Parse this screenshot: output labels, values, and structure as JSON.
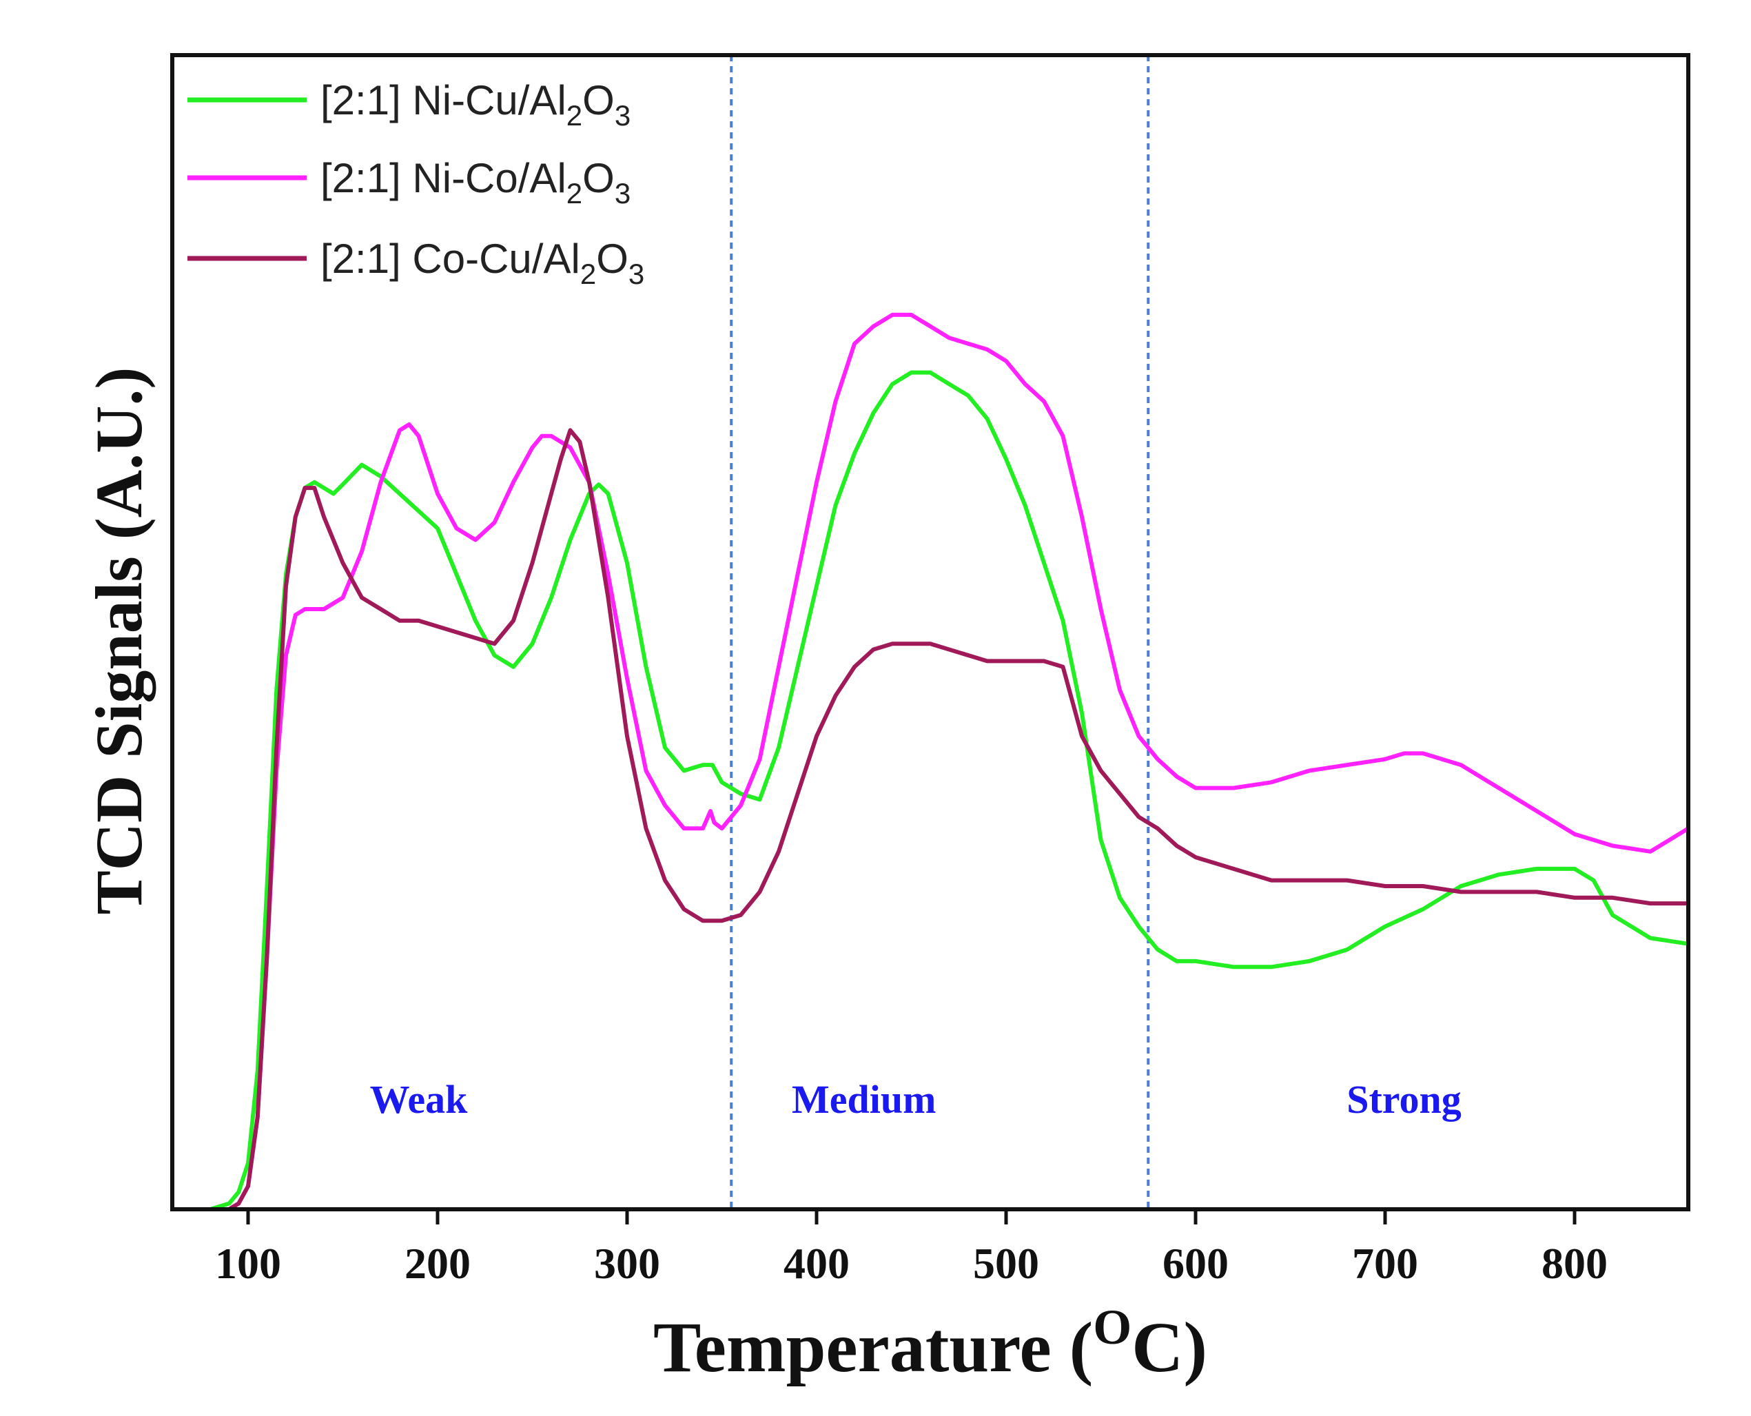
{
  "chart_data": {
    "type": "line",
    "title": "",
    "xlabel": "Temperature",
    "xlabel_unit_sup": "O",
    "xlabel_unit": "C",
    "ylabel": "TCD Signals (A.U.)",
    "xlim": [
      60,
      860
    ],
    "ylim": [
      0,
      100
    ],
    "x_ticks": [
      100,
      200,
      300,
      400,
      500,
      600,
      700,
      800
    ],
    "y_ticks": [],
    "grid": false,
    "legend_position": "top-left",
    "dividers": [
      {
        "x": 355,
        "color": "#4a7fd4"
      },
      {
        "x": 575,
        "color": "#4a7fd4"
      }
    ],
    "regions": [
      {
        "label": "Weak",
        "x": 190,
        "color": "#1a1aee"
      },
      {
        "label": "Medium",
        "x": 425,
        "color": "#1a1aee"
      },
      {
        "label": "Strong",
        "x": 710,
        "color": "#1a1aee"
      }
    ],
    "series": [
      {
        "name": "[2:1] Ni-Cu/Al2O3",
        "legend": {
          "prefix": "[2:1] Ni-Cu/Al",
          "sub1": "2",
          "mid": "O",
          "sub2": "3"
        },
        "color": "#22ee22",
        "x": [
          80,
          90,
          95,
          100,
          105,
          110,
          115,
          120,
          125,
          130,
          135,
          140,
          145,
          150,
          160,
          170,
          180,
          190,
          200,
          210,
          220,
          230,
          240,
          250,
          260,
          270,
          280,
          285,
          290,
          300,
          310,
          320,
          330,
          340,
          345,
          350,
          360,
          370,
          380,
          390,
          400,
          410,
          420,
          430,
          440,
          450,
          460,
          470,
          480,
          490,
          500,
          510,
          520,
          530,
          540,
          550,
          560,
          570,
          580,
          590,
          600,
          620,
          640,
          660,
          680,
          700,
          720,
          740,
          760,
          780,
          800,
          810,
          820,
          840,
          860
        ],
        "y": [
          0,
          0.5,
          1.5,
          4,
          12,
          28,
          45,
          55,
          60,
          62.5,
          63,
          62.5,
          62,
          62.8,
          64.5,
          63.5,
          62,
          60.5,
          59,
          55,
          51,
          48,
          47,
          49,
          53,
          58,
          62,
          62.8,
          62,
          56,
          47,
          40,
          38,
          38.5,
          38.5,
          37,
          36,
          35.5,
          40,
          47,
          54,
          61,
          65.5,
          69,
          71.5,
          72.5,
          72.5,
          71.5,
          70.5,
          68.5,
          65,
          61,
          56,
          51,
          43,
          32,
          27,
          24.5,
          22.5,
          21.5,
          21.5,
          21,
          21,
          21.5,
          22.5,
          24.5,
          26,
          28,
          29,
          29.5,
          29.5,
          28.5,
          25.5,
          23.5,
          23
        ]
      },
      {
        "name": "[2:1] Ni-Co/Al2O3",
        "legend": {
          "prefix": "[2:1] Ni-Co/Al",
          "sub1": "2",
          "mid": "O",
          "sub2": "3"
        },
        "color": "#ff22ff",
        "x": [
          80,
          90,
          95,
          100,
          105,
          110,
          115,
          120,
          125,
          130,
          135,
          140,
          150,
          160,
          170,
          180,
          185,
          190,
          200,
          210,
          220,
          230,
          240,
          250,
          255,
          260,
          270,
          280,
          290,
          300,
          310,
          320,
          330,
          340,
          344,
          346,
          350,
          360,
          370,
          380,
          390,
          400,
          410,
          420,
          430,
          440,
          450,
          460,
          470,
          480,
          490,
          500,
          510,
          520,
          530,
          540,
          550,
          560,
          570,
          580,
          590,
          600,
          620,
          640,
          660,
          680,
          700,
          710,
          720,
          740,
          760,
          780,
          800,
          820,
          840,
          860
        ],
        "y": [
          0,
          0,
          0.5,
          2,
          8,
          22,
          38,
          48,
          51.5,
          52,
          52,
          52,
          53,
          57,
          63,
          67.5,
          68,
          67,
          62,
          59,
          58,
          59.5,
          63,
          66,
          67,
          67,
          66,
          63,
          55,
          46,
          38,
          35,
          33,
          33,
          34.5,
          33.5,
          33,
          35,
          39,
          47,
          55,
          63,
          70,
          75,
          76.5,
          77.5,
          77.5,
          76.5,
          75.5,
          75,
          74.5,
          73.5,
          71.5,
          70,
          67,
          60,
          52,
          45,
          41,
          39,
          37.5,
          36.5,
          36.5,
          37,
          38,
          38.5,
          39,
          39.5,
          39.5,
          38.5,
          36.5,
          34.5,
          32.5,
          31.5,
          31,
          33
        ]
      },
      {
        "name": "[2:1] Co-Cu/Al2O3",
        "legend": {
          "prefix": "[2:1] Co-Cu/Al",
          "sub1": "2",
          "mid": "O",
          "sub2": "3"
        },
        "color": "#a01a5a",
        "x": [
          80,
          90,
          95,
          100,
          105,
          110,
          115,
          120,
          125,
          130,
          135,
          140,
          150,
          160,
          170,
          180,
          190,
          200,
          210,
          220,
          230,
          240,
          250,
          260,
          265,
          270,
          275,
          280,
          290,
          300,
          310,
          320,
          330,
          340,
          350,
          360,
          370,
          380,
          390,
          400,
          410,
          420,
          430,
          440,
          450,
          460,
          470,
          480,
          490,
          500,
          510,
          520,
          530,
          540,
          550,
          560,
          570,
          580,
          590,
          600,
          620,
          640,
          660,
          680,
          700,
          720,
          740,
          760,
          780,
          800,
          820,
          840,
          860
        ],
        "y": [
          0,
          0,
          0.5,
          2,
          8,
          22,
          40,
          54,
          60,
          62.5,
          62.5,
          60,
          56,
          53,
          52,
          51,
          51,
          50.5,
          50,
          49.5,
          49,
          51,
          56,
          62,
          65,
          67.5,
          66.5,
          63,
          53,
          41,
          33,
          28.5,
          26,
          25,
          25,
          25.5,
          27.5,
          31,
          36,
          41,
          44.5,
          47,
          48.5,
          49,
          49,
          49,
          48.5,
          48,
          47.5,
          47.5,
          47.5,
          47.5,
          47,
          41,
          38,
          36,
          34,
          33,
          31.5,
          30.5,
          29.5,
          28.5,
          28.5,
          28.5,
          28,
          28,
          27.5,
          27.5,
          27.5,
          27,
          27,
          26.5,
          26.5
        ]
      }
    ]
  }
}
